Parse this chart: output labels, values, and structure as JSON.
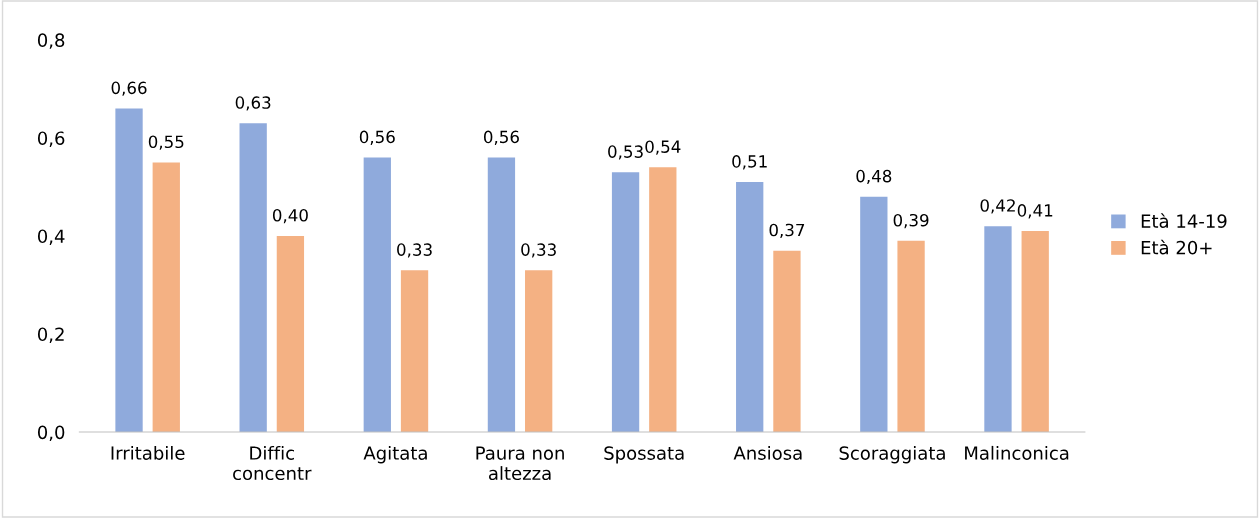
{
  "chart_data": {
    "type": "bar",
    "categories": [
      "Irritabile",
      "Diffic concentr",
      "Agitata",
      "Paura non altezza",
      "Spossata",
      "Ansiosa",
      "Scoraggiata",
      "Malinconica"
    ],
    "series": [
      {
        "name": "Età 14-19",
        "color": "#8faadc",
        "values": [
          0.66,
          0.63,
          0.56,
          0.56,
          0.53,
          0.51,
          0.48,
          0.42
        ],
        "value_labels": [
          "0,66",
          "0,63",
          "0,56",
          "0,56",
          "0,53",
          "0,51",
          "0,48",
          "0,42"
        ]
      },
      {
        "name": "Età 20+",
        "color": "#f4b183",
        "values": [
          0.55,
          0.4,
          0.33,
          0.33,
          0.54,
          0.37,
          0.39,
          0.41
        ],
        "value_labels": [
          "0,55",
          "0,40",
          "0,33",
          "0,33",
          "0,54",
          "0,37",
          "0,39",
          "0,41"
        ]
      }
    ],
    "ylim": [
      0,
      0.8
    ],
    "yticks": [
      {
        "value": 0,
        "label": "0,0"
      },
      {
        "value": 0.2,
        "label": "0,2"
      },
      {
        "value": 0.4,
        "label": "0,4"
      },
      {
        "value": 0.6,
        "label": "0,6"
      },
      {
        "value": 0.8,
        "label": "0,8"
      }
    ],
    "grid": false,
    "legend": "right"
  }
}
